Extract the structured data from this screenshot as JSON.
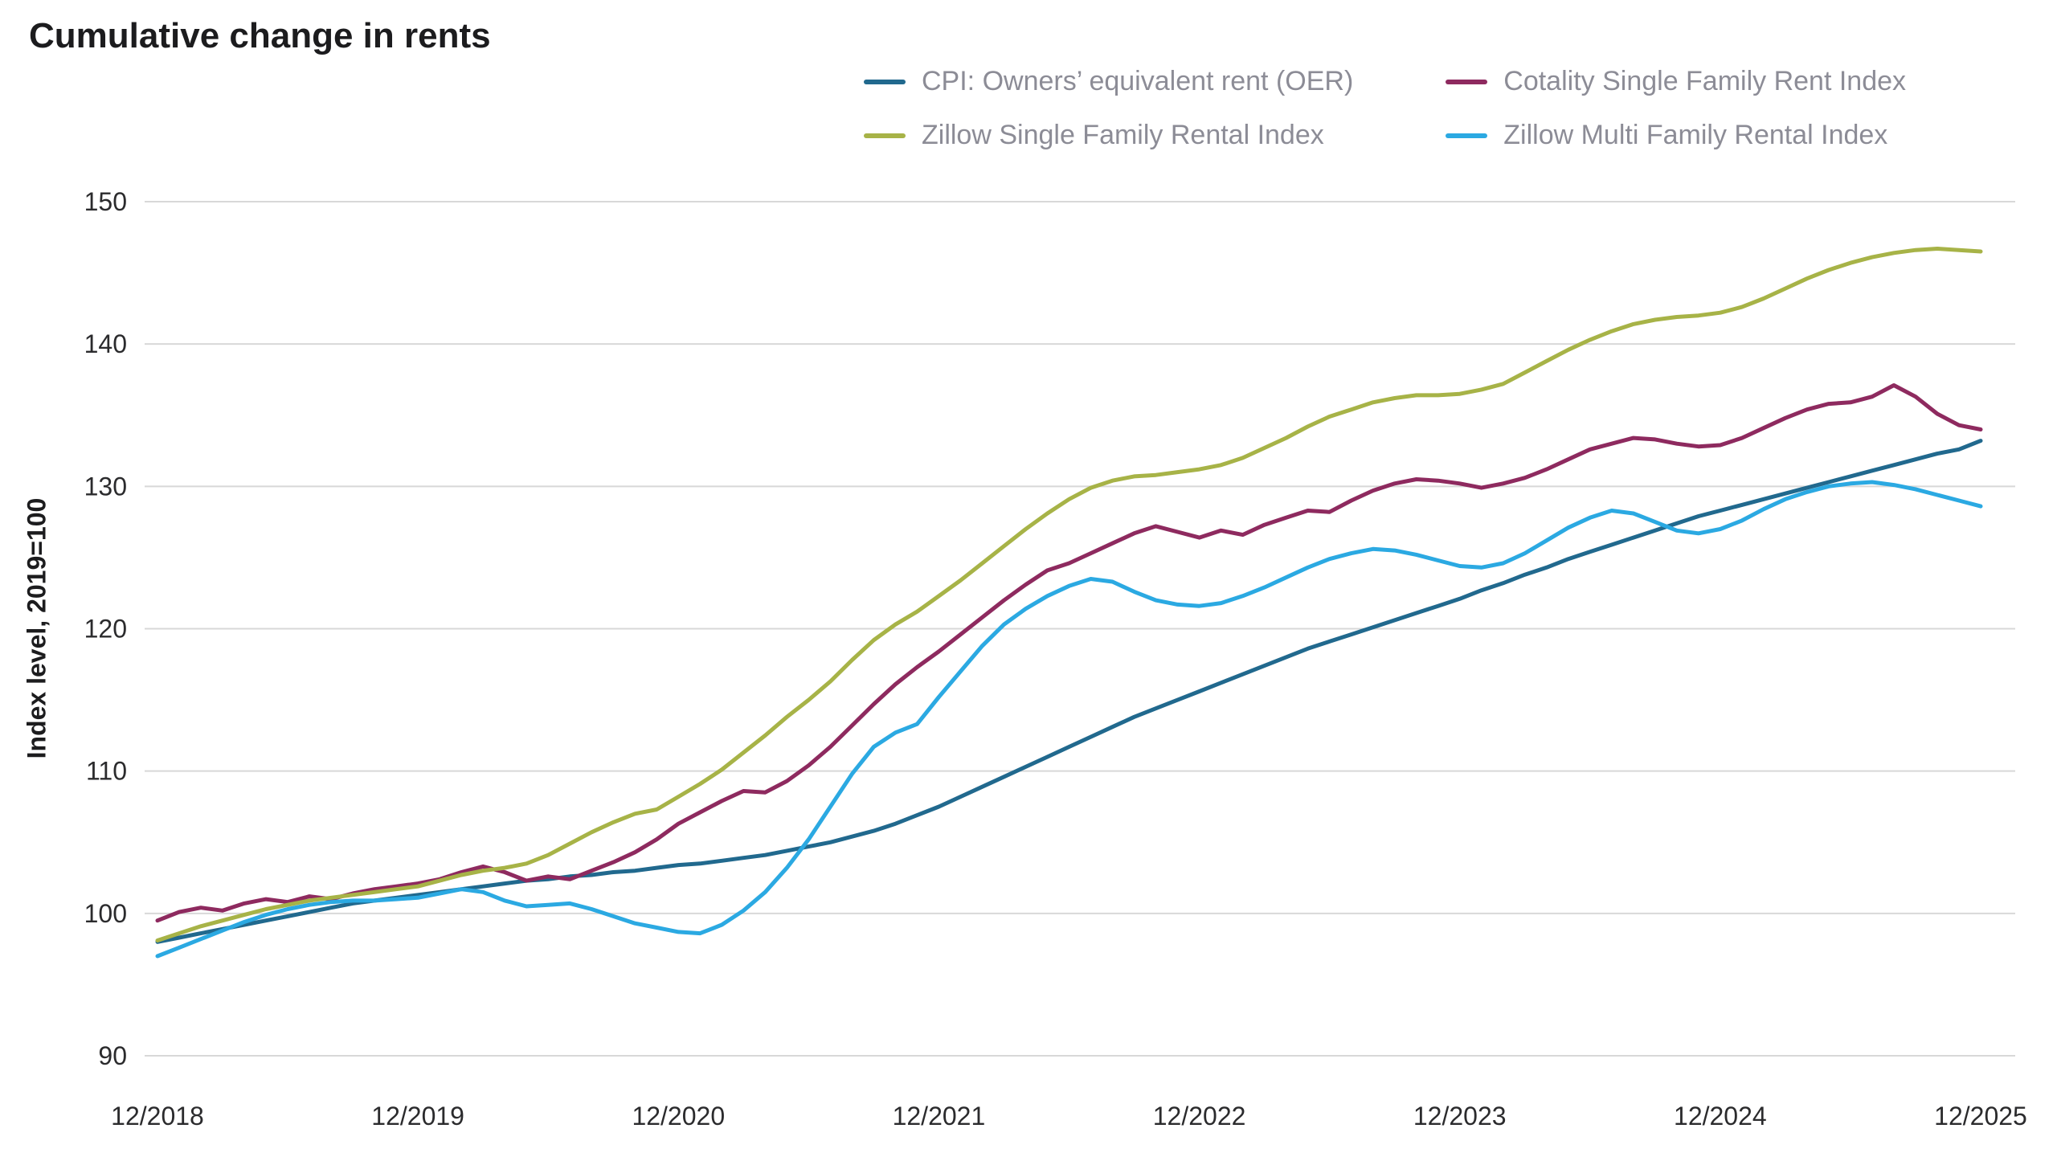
{
  "chart_data": {
    "type": "line",
    "title": "Cumulative change in rents",
    "xlabel": "",
    "ylabel": "Index level, 2019=100",
    "ylim": [
      90,
      150
    ],
    "yticks": [
      90,
      100,
      110,
      120,
      130,
      140,
      150
    ],
    "x_unit": "months, monthly observations from 12/2018 to 12/2025",
    "x_tick_labels": [
      "12/2018",
      "12/2019",
      "12/2020",
      "12/2021",
      "12/2022",
      "12/2023",
      "12/2024",
      "12/2025"
    ],
    "x_tick_positions": [
      0,
      12,
      24,
      36,
      48,
      60,
      72,
      84
    ],
    "grid": "horizontal",
    "legend_position": "top",
    "legend_text_color": "#8c8c96",
    "gridline_color": "#d8d8d8",
    "series": [
      {
        "name": "CPI: Owners’ equivalent rent (OER)",
        "color": "#21698e",
        "values": [
          98.0,
          98.3,
          98.6,
          98.9,
          99.2,
          99.5,
          99.8,
          100.1,
          100.4,
          100.7,
          100.9,
          101.1,
          101.3,
          101.5,
          101.7,
          101.9,
          102.1,
          102.3,
          102.4,
          102.6,
          102.7,
          102.9,
          103.0,
          103.2,
          103.4,
          103.5,
          103.7,
          103.9,
          104.1,
          104.4,
          104.7,
          105.0,
          105.4,
          105.8,
          106.3,
          106.9,
          107.5,
          108.2,
          108.9,
          109.6,
          110.3,
          111.0,
          111.7,
          112.4,
          113.1,
          113.8,
          114.4,
          115.0,
          115.6,
          116.2,
          116.8,
          117.4,
          118.0,
          118.6,
          119.1,
          119.6,
          120.1,
          120.6,
          121.1,
          121.6,
          122.1,
          122.7,
          123.2,
          123.8,
          124.3,
          124.9,
          125.4,
          125.9,
          126.4,
          126.9,
          127.4,
          127.9,
          128.3,
          128.7,
          129.1,
          129.5,
          129.9,
          130.3,
          130.7,
          131.1,
          131.5,
          131.9,
          132.3,
          132.6,
          133.2
        ]
      },
      {
        "name": "Cotality Single Family Rent Index",
        "color": "#8e2a5f",
        "values": [
          99.5,
          100.1,
          100.4,
          100.2,
          100.7,
          101.0,
          100.8,
          101.2,
          101.0,
          101.4,
          101.7,
          101.9,
          102.1,
          102.4,
          102.9,
          103.3,
          102.9,
          102.3,
          102.6,
          102.4,
          103.0,
          103.6,
          104.3,
          105.2,
          106.3,
          107.1,
          107.9,
          108.6,
          108.5,
          109.3,
          110.4,
          111.7,
          113.2,
          114.7,
          116.1,
          117.3,
          118.4,
          119.6,
          120.8,
          122.0,
          123.1,
          124.1,
          124.6,
          125.3,
          126.0,
          126.7,
          127.2,
          126.8,
          126.4,
          126.9,
          126.6,
          127.3,
          127.8,
          128.3,
          128.2,
          129.0,
          129.7,
          130.2,
          130.5,
          130.4,
          130.2,
          129.9,
          130.2,
          130.6,
          131.2,
          131.9,
          132.6,
          133.0,
          133.4,
          133.3,
          133.0,
          132.8,
          132.9,
          133.4,
          134.1,
          134.8,
          135.4,
          135.8,
          135.9,
          136.3,
          137.1,
          136.3,
          135.1,
          134.3,
          134.0
        ]
      },
      {
        "name": "Zillow Single Family Rental Index",
        "color": "#a7b347",
        "values": [
          98.1,
          98.6,
          99.1,
          99.5,
          99.9,
          100.3,
          100.6,
          100.9,
          101.1,
          101.3,
          101.5,
          101.7,
          101.9,
          102.3,
          102.7,
          103.0,
          103.2,
          103.5,
          104.1,
          104.9,
          105.7,
          106.4,
          107.0,
          107.3,
          108.2,
          109.1,
          110.1,
          111.3,
          112.5,
          113.8,
          115.0,
          116.3,
          117.8,
          119.2,
          120.3,
          121.2,
          122.3,
          123.4,
          124.6,
          125.8,
          127.0,
          128.1,
          129.1,
          129.9,
          130.4,
          130.7,
          130.8,
          131.0,
          131.2,
          131.5,
          132.0,
          132.7,
          133.4,
          134.2,
          134.9,
          135.4,
          135.9,
          136.2,
          136.4,
          136.4,
          136.5,
          136.8,
          137.2,
          138.0,
          138.8,
          139.6,
          140.3,
          140.9,
          141.4,
          141.7,
          141.9,
          142.0,
          142.2,
          142.6,
          143.2,
          143.9,
          144.6,
          145.2,
          145.7,
          146.1,
          146.4,
          146.6,
          146.7,
          146.6,
          146.5
        ]
      },
      {
        "name": "Zillow Multi Family Rental Index",
        "color": "#2ba9e2",
        "values": [
          97.0,
          97.6,
          98.2,
          98.8,
          99.4,
          99.9,
          100.3,
          100.6,
          100.8,
          100.9,
          100.9,
          101.0,
          101.1,
          101.4,
          101.7,
          101.5,
          100.9,
          100.5,
          100.6,
          100.7,
          100.3,
          99.8,
          99.3,
          99.0,
          98.7,
          98.6,
          99.2,
          100.2,
          101.5,
          103.2,
          105.2,
          107.5,
          109.8,
          111.7,
          112.7,
          113.3,
          115.2,
          117.0,
          118.8,
          120.3,
          121.4,
          122.3,
          123.0,
          123.5,
          123.3,
          122.6,
          122.0,
          121.7,
          121.6,
          121.8,
          122.3,
          122.9,
          123.6,
          124.3,
          124.9,
          125.3,
          125.6,
          125.5,
          125.2,
          124.8,
          124.4,
          124.3,
          124.6,
          125.3,
          126.2,
          127.1,
          127.8,
          128.3,
          128.1,
          127.5,
          126.9,
          126.7,
          127.0,
          127.6,
          128.4,
          129.1,
          129.6,
          130.0,
          130.2,
          130.3,
          130.1,
          129.8,
          129.4,
          129.0,
          128.6
        ]
      }
    ]
  }
}
